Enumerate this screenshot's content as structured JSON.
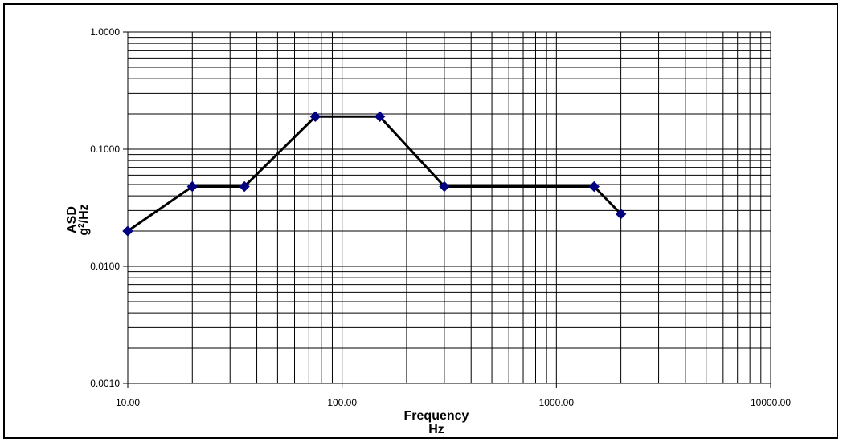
{
  "chart_data": {
    "type": "line",
    "xlabel": "Frequency",
    "xlabel_unit": "Hz",
    "ylabel": "ASD",
    "ylabel_unit": "g",
    "ylabel_unit_sup": "2",
    "ylabel_unit_suffix": "/Hz",
    "x_scale": "log",
    "y_scale": "log",
    "xlim": [
      10,
      10000
    ],
    "ylim": [
      0.001,
      1
    ],
    "x_ticks": [
      10,
      100,
      1000,
      10000
    ],
    "x_tick_labels": [
      "10.00",
      "100.00",
      "1000.00",
      "10000.00"
    ],
    "y_ticks": [
      0.001,
      0.01,
      0.1,
      1
    ],
    "y_tick_labels": [
      "0.0010",
      "0.0100",
      "0.1000",
      "1.0000"
    ],
    "grid": true,
    "legend": "none",
    "series": [
      {
        "x": [
          10,
          20,
          35,
          75,
          150,
          300,
          1500,
          2000
        ],
        "y": [
          0.02,
          0.048,
          0.048,
          0.19,
          0.19,
          0.048,
          0.048,
          0.028
        ],
        "line_color": "#000000",
        "marker_color": "#000080",
        "marker": "diamond"
      }
    ]
  }
}
